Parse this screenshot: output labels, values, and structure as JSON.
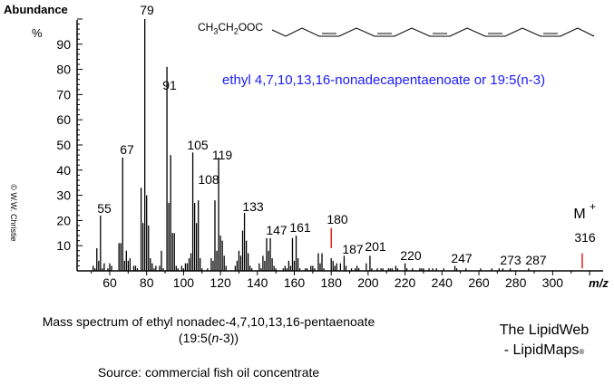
{
  "chart_data": {
    "type": "bar",
    "title": "Mass spectrum of ethyl nonadec-4,7,10,13,16-pentaenoate (19:5(n-3))",
    "xlabel": "m/z",
    "ylabel": "Abundance %",
    "xlim": [
      42,
      322
    ],
    "ylim": [
      0,
      100
    ],
    "x_ticks": [
      60,
      80,
      100,
      120,
      140,
      160,
      180,
      200,
      220,
      240,
      260,
      280,
      300
    ],
    "y_ticks": [
      10,
      20,
      30,
      40,
      50,
      60,
      70,
      80,
      90
    ],
    "grid": false,
    "labeled_peaks": [
      {
        "mz": 55,
        "label": "55"
      },
      {
        "mz": 67,
        "label": "67"
      },
      {
        "mz": 79,
        "label": "79"
      },
      {
        "mz": 91,
        "label": "91"
      },
      {
        "mz": 105,
        "label": "105"
      },
      {
        "mz": 108,
        "label": "108"
      },
      {
        "mz": 119,
        "label": "119"
      },
      {
        "mz": 133,
        "label": "133"
      },
      {
        "mz": 147,
        "label": "147"
      },
      {
        "mz": 161,
        "label": "161"
      },
      {
        "mz": 180,
        "label": "180",
        "color": "#e00000"
      },
      {
        "mz": 187,
        "label": "187"
      },
      {
        "mz": 201,
        "label": "201"
      },
      {
        "mz": 220,
        "label": "220"
      },
      {
        "mz": 247,
        "label": "247"
      },
      {
        "mz": 273,
        "label": "273"
      },
      {
        "mz": 287,
        "label": "287"
      },
      {
        "mz": 316,
        "label": "316",
        "color": "#e00000"
      }
    ],
    "peaks": [
      [
        51,
        2
      ],
      [
        52,
        1
      ],
      [
        53,
        9
      ],
      [
        54,
        4
      ],
      [
        55,
        22
      ],
      [
        56,
        1
      ],
      [
        57,
        3
      ],
      [
        59,
        1
      ],
      [
        60,
        3
      ],
      [
        61,
        2
      ],
      [
        65,
        11
      ],
      [
        66,
        11
      ],
      [
        67,
        45
      ],
      [
        68,
        4
      ],
      [
        69,
        8
      ],
      [
        70,
        4
      ],
      [
        71,
        5
      ],
      [
        73,
        2
      ],
      [
        74,
        2
      ],
      [
        75,
        1
      ],
      [
        77,
        33
      ],
      [
        78,
        19
      ],
      [
        79,
        100
      ],
      [
        80,
        30
      ],
      [
        81,
        18
      ],
      [
        82,
        5
      ],
      [
        83,
        3
      ],
      [
        84,
        1
      ],
      [
        85,
        2
      ],
      [
        87,
        2
      ],
      [
        88,
        8
      ],
      [
        89,
        1
      ],
      [
        91,
        81
      ],
      [
        92,
        27
      ],
      [
        93,
        46
      ],
      [
        94,
        15
      ],
      [
        95,
        15
      ],
      [
        96,
        2
      ],
      [
        97,
        1
      ],
      [
        99,
        2
      ],
      [
        100,
        1
      ],
      [
        101,
        3
      ],
      [
        102,
        3
      ],
      [
        103,
        5
      ],
      [
        104,
        7
      ],
      [
        105,
        47
      ],
      [
        106,
        27
      ],
      [
        107,
        19
      ],
      [
        108,
        28
      ],
      [
        109,
        5
      ],
      [
        110,
        1
      ],
      [
        113,
        1
      ],
      [
        115,
        5
      ],
      [
        116,
        4
      ],
      [
        117,
        28
      ],
      [
        118,
        8
      ],
      [
        119,
        45
      ],
      [
        120,
        14
      ],
      [
        121,
        12
      ],
      [
        122,
        6
      ],
      [
        123,
        2
      ],
      [
        128,
        2
      ],
      [
        129,
        4
      ],
      [
        130,
        8
      ],
      [
        131,
        6
      ],
      [
        132,
        16
      ],
      [
        133,
        23
      ],
      [
        134,
        12
      ],
      [
        135,
        7
      ],
      [
        136,
        2
      ],
      [
        137,
        1
      ],
      [
        141,
        3
      ],
      [
        142,
        1
      ],
      [
        143,
        6
      ],
      [
        144,
        4
      ],
      [
        145,
        13
      ],
      [
        146,
        8
      ],
      [
        147,
        13
      ],
      [
        148,
        5
      ],
      [
        149,
        2
      ],
      [
        150,
        1
      ],
      [
        154,
        1
      ],
      [
        155,
        2
      ],
      [
        156,
        1
      ],
      [
        157,
        4
      ],
      [
        158,
        2
      ],
      [
        159,
        13
      ],
      [
        160,
        4
      ],
      [
        161,
        14
      ],
      [
        162,
        5
      ],
      [
        163,
        1
      ],
      [
        166,
        1
      ],
      [
        167,
        1
      ],
      [
        169,
        2
      ],
      [
        170,
        2
      ],
      [
        171,
        1
      ],
      [
        173,
        7
      ],
      [
        174,
        3
      ],
      [
        175,
        7
      ],
      [
        176,
        1
      ],
      [
        180,
        8,
        "#e00000"
      ],
      [
        181,
        4
      ],
      [
        182,
        2
      ],
      [
        183,
        3
      ],
      [
        185,
        3
      ],
      [
        187,
        6
      ],
      [
        188,
        2
      ],
      [
        191,
        1
      ],
      [
        193,
        1
      ],
      [
        194,
        2
      ],
      [
        195,
        1
      ],
      [
        199,
        3
      ],
      [
        201,
        6
      ],
      [
        202,
        1
      ],
      [
        205,
        1
      ],
      [
        207,
        1
      ],
      [
        208,
        1
      ],
      [
        211,
        1
      ],
      [
        212,
        1
      ],
      [
        213,
        1
      ],
      [
        215,
        2
      ],
      [
        216,
        1
      ],
      [
        220,
        3
      ],
      [
        221,
        1
      ],
      [
        224,
        1
      ],
      [
        228,
        1
      ],
      [
        229,
        1
      ],
      [
        230,
        1
      ],
      [
        233,
        1
      ],
      [
        235,
        1
      ],
      [
        237,
        1
      ],
      [
        241,
        1
      ],
      [
        247,
        2
      ],
      [
        248,
        1
      ],
      [
        253,
        1
      ],
      [
        261,
        1
      ],
      [
        267,
        1
      ],
      [
        271,
        1
      ],
      [
        273,
        1
      ],
      [
        277,
        1
      ],
      [
        287,
        1
      ],
      [
        316,
        10,
        "#e00000"
      ]
    ],
    "molecular_ion": {
      "label": "M+",
      "mz": 316
    }
  },
  "labels": {
    "ylabel": "Abundance",
    "ypct": "%",
    "xlabel": "m/z",
    "copyright": "© W.W. Christie",
    "formula_prefix": "CH3CH2OOC",
    "compound_name": "ethyl 4,7,10,13,16-nonadecapentaenoate or 19:5(n-3)",
    "molecular_ion": "M+",
    "caption_line1": "Mass spectrum of ethyl nonadec-4,7,10,13,16-pentaenoate",
    "caption_line2": "(19:5(n-3))",
    "source": "Source: commercial fish oil concentrate",
    "brand_line1": "The LipidWeb",
    "brand_line2": "- LipidMaps",
    "brand_mark": "®"
  }
}
